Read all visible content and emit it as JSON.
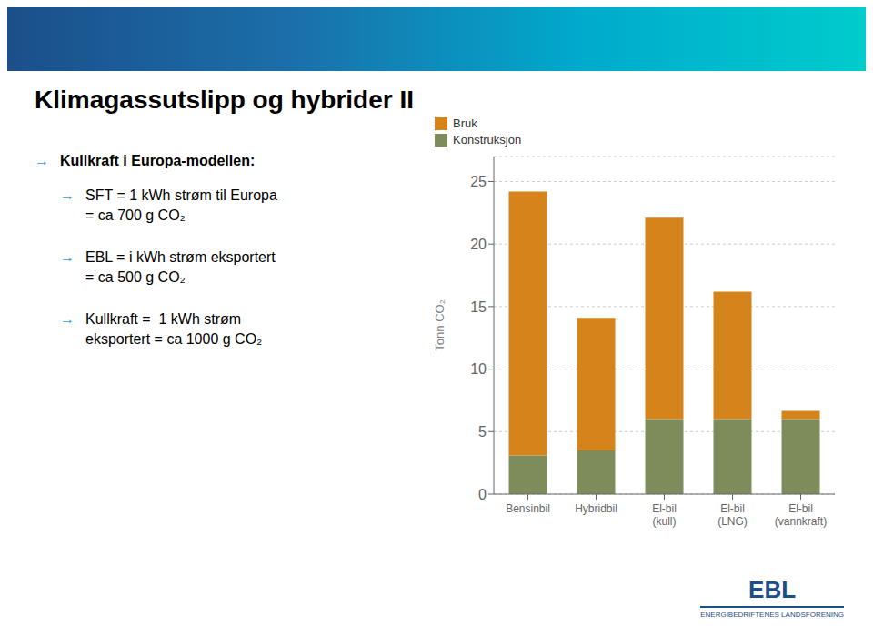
{
  "chart_data": {
    "type": "bar",
    "title": "Klimagassutslipp og hybrider II",
    "subtitle": "→ Kullkraft i Europa-modellen:",
    "annotations": [
      "→ SFT = 1 kWh strøm til Europa",
      "= ca 700 g CO₂",
      "→ EBL = i kWh strøm eksportert",
      "= ca 500 g CO₂",
      "→ Kullkraft =  1 kWh strøm",
      "eksportert = ca 1000 g CO₂",
      "EBL",
      "ENERGIBEDRIFTENES LANDSFORENING"
    ],
    "categories": [
      "Bensinbil",
      "Hybridbil",
      "El-bil\n(kull)",
      "El-bil\n(LNG)",
      "El-bil\n(vannkraft)"
    ],
    "series": [
      {
        "name": "Konstruksjon",
        "color": "#7D8C5A",
        "values": [
          3.1,
          3.5,
          6.0,
          6.0,
          6.0
        ]
      },
      {
        "name": "Bruk",
        "color": "#D4841A",
        "values": [
          21.1,
          10.6,
          16.1,
          10.2,
          0.65
        ]
      }
    ],
    "stacked": true,
    "y_label": "Tonn CO₂",
    "ylim": [
      0,
      27
    ],
    "yticks": [
      0,
      5,
      10,
      15,
      20,
      25
    ],
    "grid": true,
    "legend": "upper right"
  }
}
